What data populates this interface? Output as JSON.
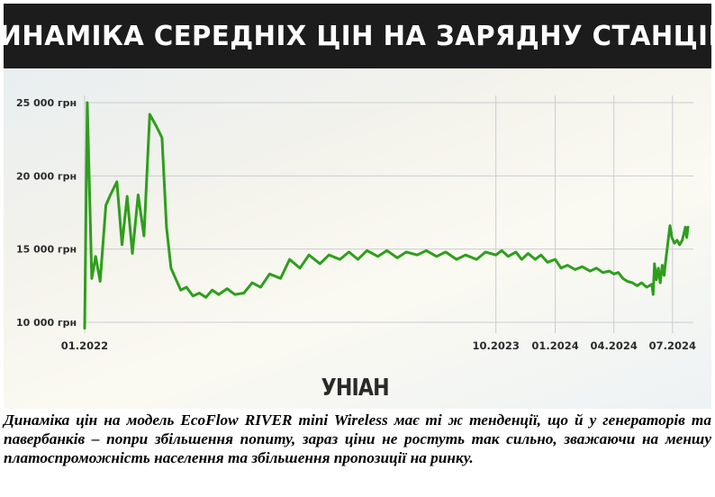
{
  "header": {
    "title": "ДИНАМІКА СЕРЕДНІХ ЦІН НА ЗАРЯДНУ СТАНЦІЮ"
  },
  "logo": {
    "text": "УНІАН"
  },
  "caption": "Динаміка цін на модель EcoFlow RIVER mini Wireless має ті ж тенденції, що й у генераторів та павербанків – попри збільшення попиту, зараз ціни не ростуть так сильно, зважаючи на меншу платоспроможність населення та збільшення пропозиції на ринку.",
  "colors": {
    "line": "#2e9e1c",
    "grid": "#c9cdd0",
    "header_bg": "#1c1c1c",
    "axis_text": "#2b2b2b"
  },
  "chart_data": {
    "type": "line",
    "title": "ДИНАМІКА СЕРЕДНІХ ЦІН НА ЗАРЯДНУ СТАНЦІЮ",
    "xlabel": "",
    "ylabel": "",
    "ylim": [
      10000,
      25000
    ],
    "xlim": [
      "2022-01-01",
      "2024-07-25"
    ],
    "x_ticks": [
      {
        "date": "2022-01-01",
        "label": "01.2022"
      },
      {
        "date": "2023-10-01",
        "label": "10.2023"
      },
      {
        "date": "2024-01-01",
        "label": "01.2024"
      },
      {
        "date": "2024-04-01",
        "label": "04.2024"
      },
      {
        "date": "2024-07-01",
        "label": "07.2024"
      }
    ],
    "y_ticks": [
      {
        "value": 10000,
        "label": "10 000 грн"
      },
      {
        "value": 15000,
        "label": "15 000 грн"
      },
      {
        "value": 20000,
        "label": "20 000 грн"
      },
      {
        "value": 25000,
        "label": "25 000 грн"
      }
    ],
    "grid": true,
    "series": [
      {
        "points": [
          [
            "2022-01-01",
            9600
          ],
          [
            "2022-01-05",
            25000
          ],
          [
            "2022-01-12",
            13000
          ],
          [
            "2022-01-18",
            14500
          ],
          [
            "2022-01-25",
            12800
          ],
          [
            "2022-02-03",
            18000
          ],
          [
            "2022-02-10",
            18700
          ],
          [
            "2022-02-20",
            19600
          ],
          [
            "2022-02-28",
            15300
          ],
          [
            "2022-03-08",
            18600
          ],
          [
            "2022-03-16",
            14700
          ],
          [
            "2022-03-25",
            18700
          ],
          [
            "2022-04-03",
            15900
          ],
          [
            "2022-04-12",
            24200
          ],
          [
            "2022-04-22",
            23400
          ],
          [
            "2022-05-01",
            22600
          ],
          [
            "2022-05-08",
            16500
          ],
          [
            "2022-05-15",
            13700
          ],
          [
            "2022-05-22",
            13000
          ],
          [
            "2022-05-30",
            12200
          ],
          [
            "2022-06-08",
            12400
          ],
          [
            "2022-06-18",
            11800
          ],
          [
            "2022-06-28",
            12000
          ],
          [
            "2022-07-08",
            11700
          ],
          [
            "2022-07-18",
            12200
          ],
          [
            "2022-07-28",
            11900
          ],
          [
            "2022-08-10",
            12300
          ],
          [
            "2022-08-22",
            11900
          ],
          [
            "2022-09-05",
            12000
          ],
          [
            "2022-09-18",
            12700
          ],
          [
            "2022-10-01",
            12400
          ],
          [
            "2022-10-15",
            13300
          ],
          [
            "2022-11-01",
            13000
          ],
          [
            "2022-11-15",
            14300
          ],
          [
            "2022-12-01",
            13700
          ],
          [
            "2022-12-15",
            14600
          ],
          [
            "2023-01-01",
            14000
          ],
          [
            "2023-01-15",
            14600
          ],
          [
            "2023-02-01",
            14300
          ],
          [
            "2023-02-15",
            14800
          ],
          [
            "2023-03-01",
            14300
          ],
          [
            "2023-03-15",
            14900
          ],
          [
            "2023-04-01",
            14500
          ],
          [
            "2023-04-15",
            14900
          ],
          [
            "2023-05-01",
            14400
          ],
          [
            "2023-05-15",
            14800
          ],
          [
            "2023-06-01",
            14600
          ],
          [
            "2023-06-15",
            14900
          ],
          [
            "2023-07-01",
            14500
          ],
          [
            "2023-07-15",
            14800
          ],
          [
            "2023-08-01",
            14300
          ],
          [
            "2023-08-15",
            14600
          ],
          [
            "2023-09-01",
            14300
          ],
          [
            "2023-09-15",
            14800
          ],
          [
            "2023-10-01",
            14600
          ],
          [
            "2023-10-10",
            14900
          ],
          [
            "2023-10-20",
            14500
          ],
          [
            "2023-11-01",
            14800
          ],
          [
            "2023-11-10",
            14300
          ],
          [
            "2023-11-20",
            14700
          ],
          [
            "2023-12-01",
            14300
          ],
          [
            "2023-12-10",
            14600
          ],
          [
            "2023-12-20",
            14100
          ],
          [
            "2024-01-01",
            14300
          ],
          [
            "2024-01-10",
            13700
          ],
          [
            "2024-01-20",
            13900
          ],
          [
            "2024-02-01",
            13600
          ],
          [
            "2024-02-12",
            13800
          ],
          [
            "2024-02-24",
            13500
          ],
          [
            "2024-03-05",
            13700
          ],
          [
            "2024-03-15",
            13400
          ],
          [
            "2024-03-25",
            13500
          ],
          [
            "2024-04-01",
            13300
          ],
          [
            "2024-04-08",
            13400
          ],
          [
            "2024-04-15",
            13000
          ],
          [
            "2024-04-22",
            12800
          ],
          [
            "2024-04-30",
            12700
          ],
          [
            "2024-05-07",
            12500
          ],
          [
            "2024-05-14",
            12700
          ],
          [
            "2024-05-22",
            12400
          ],
          [
            "2024-05-30",
            12600
          ],
          [
            "2024-06-01",
            11900
          ],
          [
            "2024-06-03",
            14000
          ],
          [
            "2024-06-06",
            12900
          ],
          [
            "2024-06-09",
            13700
          ],
          [
            "2024-06-12",
            12700
          ],
          [
            "2024-06-15",
            13900
          ],
          [
            "2024-06-18",
            13200
          ],
          [
            "2024-06-20",
            14000
          ],
          [
            "2024-06-24",
            15500
          ],
          [
            "2024-06-27",
            16600
          ],
          [
            "2024-06-30",
            15800
          ],
          [
            "2024-07-04",
            15400
          ],
          [
            "2024-07-08",
            15600
          ],
          [
            "2024-07-12",
            15300
          ],
          [
            "2024-07-16",
            15600
          ],
          [
            "2024-07-19",
            16100
          ],
          [
            "2024-07-21",
            16500
          ],
          [
            "2024-07-23",
            15800
          ],
          [
            "2024-07-25",
            16500
          ]
        ]
      }
    ]
  }
}
